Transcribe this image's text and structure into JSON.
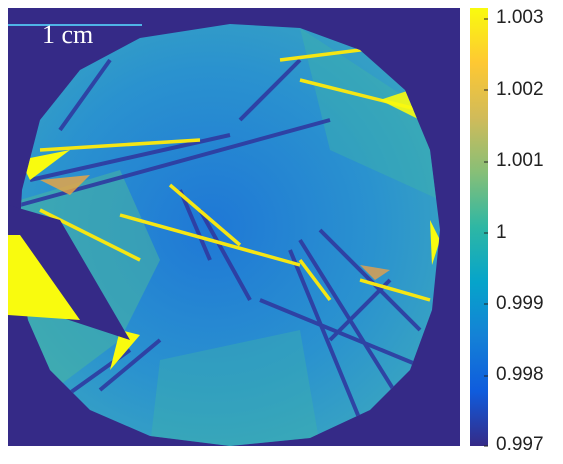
{
  "image": {
    "background_color": "#352a87",
    "sample_base_color": "#2a8fd0"
  },
  "scale_bar": {
    "label": "1 cm",
    "color": "#4fb3e6"
  },
  "colorbar": {
    "colormap": "parula",
    "colors": [
      "#352a87",
      "#0f5cdd",
      "#1481d6",
      "#06a4ca",
      "#2eb7a4",
      "#87bf77",
      "#d1bb59",
      "#fec832",
      "#f9fb0e"
    ],
    "min": 0.997,
    "max": 1.003,
    "ticks": [
      "1.003",
      "1.002",
      "1.001",
      "1",
      "0.999",
      "0.998",
      "0.997"
    ]
  }
}
